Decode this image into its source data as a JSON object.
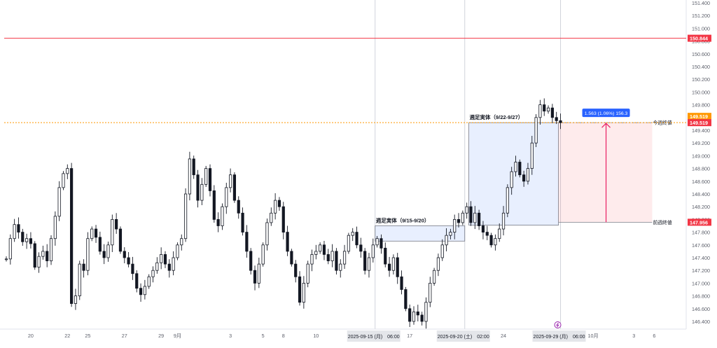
{
  "chart_data": {
    "type": "candlestick",
    "y_range": [
      146.2,
      151.5
    ],
    "y_ticks": [
      "151.400",
      "151.200",
      "151.000",
      "150.800",
      "150.600",
      "150.400",
      "150.200",
      "150.000",
      "149.800",
      "149.600",
      "149.400",
      "149.200",
      "149.000",
      "148.800",
      "148.600",
      "148.400",
      "148.200",
      "148.000",
      "147.800",
      "147.600",
      "147.400",
      "147.200",
      "147.000",
      "146.800",
      "146.600",
      "146.400"
    ],
    "x_ticks": [
      {
        "label": "20",
        "bar": 6
      },
      {
        "label": "22",
        "bar": 15
      },
      {
        "label": "25",
        "bar": 20
      },
      {
        "label": "27",
        "bar": 29
      },
      {
        "label": "29",
        "bar": 38
      },
      {
        "label": "9月",
        "bar": 42
      },
      {
        "label": "3",
        "bar": 55
      },
      {
        "label": "5",
        "bar": 63
      },
      {
        "label": "8",
        "bar": 68
      },
      {
        "label": "10",
        "bar": 76
      },
      {
        "label": "17",
        "bar": 99
      },
      {
        "label": "24",
        "bar": 122
      },
      {
        "label": "10月",
        "bar": 144
      },
      {
        "label": "3",
        "bar": 154
      },
      {
        "label": "6",
        "bar": 159
      }
    ],
    "crosshair_labels": [
      {
        "text": "2025-09-15 (月)　06:00",
        "bar": 90.5
      },
      {
        "text": "2025-09-20 (土)　02:00",
        "bar": 112.5
      },
      {
        "text": "2025-09-29 (月)　06:00",
        "bar": 136
      }
    ],
    "price_lines": [
      {
        "value": 150.844,
        "label": "150.844",
        "color": "#f23645",
        "style": "solid"
      },
      {
        "value": 149.519,
        "label": "149.519",
        "color": "#ff9800",
        "style": "dotted"
      }
    ],
    "price_badges": [
      {
        "value": 149.519,
        "label": "149.519",
        "color": "#f23645"
      },
      {
        "value": 147.956,
        "label": "147.956",
        "color": "#f23645"
      }
    ],
    "boxes": [
      {
        "label": "週足実体（9/15-9/20）",
        "bar_start": 90.5,
        "bar_end": 112.5,
        "top": 147.9,
        "bottom": 147.66
      },
      {
        "label": "週足実体（9/22-9/27）",
        "bar_start": 113.5,
        "bar_end": 135.5,
        "top": 149.519,
        "bottom": 147.91
      }
    ],
    "measure": {
      "label": "1.563 (1.06%) 156.3",
      "from": 147.956,
      "to": 149.519,
      "bar_start": 135.5,
      "bar_end": 158.5,
      "tag_top": "今週終値",
      "tag_bottom": "前週終値"
    },
    "bars_count": 137,
    "first_open": 147.38,
    "closes": [
      147.38,
      147.7,
      147.92,
      147.8,
      147.65,
      147.7,
      147.62,
      147.25,
      147.42,
      147.5,
      147.35,
      147.7,
      148.05,
      148.5,
      148.72,
      148.8,
      146.68,
      146.8,
      147.3,
      147.2,
      147.7,
      147.85,
      147.72,
      147.5,
      147.4,
      147.6,
      148.0,
      147.85,
      147.5,
      147.4,
      147.3,
      147.15,
      146.92,
      146.82,
      146.95,
      147.1,
      147.2,
      147.32,
      147.45,
      147.3,
      147.2,
      147.4,
      147.6,
      147.7,
      148.4,
      148.95,
      148.7,
      148.3,
      148.55,
      148.8,
      148.45,
      148.0,
      147.9,
      148.2,
      148.5,
      148.7,
      148.3,
      148.1,
      147.8,
      147.5,
      147.2,
      147.0,
      147.3,
      147.6,
      147.95,
      148.1,
      148.3,
      148.2,
      147.8,
      147.5,
      147.3,
      147.1,
      146.7,
      147.0,
      147.3,
      147.45,
      147.5,
      147.6,
      147.45,
      147.35,
      147.5,
      147.2,
      147.3,
      147.5,
      147.75,
      147.8,
      147.6,
      147.5,
      147.2,
      147.4,
      147.6,
      147.7,
      147.55,
      147.3,
      147.2,
      147.4,
      147.1,
      146.9,
      146.6,
      146.4,
      146.55,
      146.5,
      146.4,
      146.7,
      147.0,
      147.2,
      147.4,
      147.6,
      147.75,
      147.8,
      148.0,
      147.95,
      148.1,
      148.2,
      147.95,
      148.1,
      147.9,
      147.8,
      147.75,
      147.6,
      147.7,
      147.85,
      148.1,
      148.5,
      148.75,
      148.9,
      148.7,
      148.6,
      148.8,
      149.2,
      149.6,
      149.8,
      149.7,
      149.75,
      149.6,
      149.55,
      149.519
    ]
  }
}
